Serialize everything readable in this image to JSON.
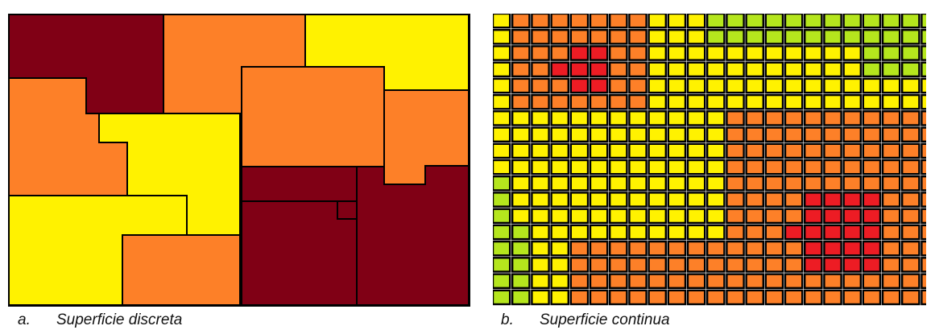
{
  "colors": {
    "dark_red": "#800015",
    "orange": "#fd8028",
    "yellow": "#fff200",
    "red": "#ed1c24",
    "green": "#b5e61d",
    "border": "#000000"
  },
  "captions": {
    "a_letter": "a.",
    "a_text": "Superficie discreta",
    "b_letter": "b.",
    "b_text": "Superficie continua"
  },
  "discrete_regions": [
    {
      "fill": "dark_red"
    },
    {
      "fill": "orange"
    },
    {
      "fill": "yellow"
    },
    {
      "fill": "orange"
    },
    {
      "fill": "orange"
    },
    {
      "fill": "orange"
    },
    {
      "fill": "yellow"
    },
    {
      "fill": "dark_red"
    },
    {
      "fill": "dark_red"
    },
    {
      "fill": "dark_red"
    },
    {
      "fill": "yellow"
    },
    {
      "fill": "orange"
    }
  ],
  "continuous_grid": {
    "legend": {
      "R": "red",
      "O": "orange",
      "Y": "yellow",
      "G": "green"
    },
    "rows": [
      "YOOOOOOOYYYGGGGGGGGGGGG",
      "YOOOOOOOYYYGGGGGGGGGGGG",
      "YOOORROOYYYYYYYYYYYGGGG",
      "YOORRROOYYYYYYYYYYYGGGG",
      "YOOORROOYYYYYYYYYYYYYYY",
      "YOOOOOOOYYYYYYYYYYYYYYY",
      "YYYYYYYYYYYYOOOOOOOOOOO",
      "YYYYYYYYYYYYOOOOOOOOOOO",
      "YYYYYYYYYYYYOOOOOOOOOOO",
      "YYYYYYYYYYYYOOOOOOOOOOO",
      "GYYYYYYYYYYYOOOOOOOOOOO",
      "GYYYYYYYYYYYOOOORRRROOO",
      "GYYYYYYYYYYYOOOORRRROOO",
      "GGYYYYYYYYYYOOORRRRROOO",
      "GGYYOOOOOOOOOOOORRRROOO",
      "GGYYOOOOOOOOOOOORRRROOO",
      "GGYYOOOOOOOOOOOOOOOOOOO",
      "GGYYOOOOOOOOOOOOOOOOOOO"
    ]
  }
}
